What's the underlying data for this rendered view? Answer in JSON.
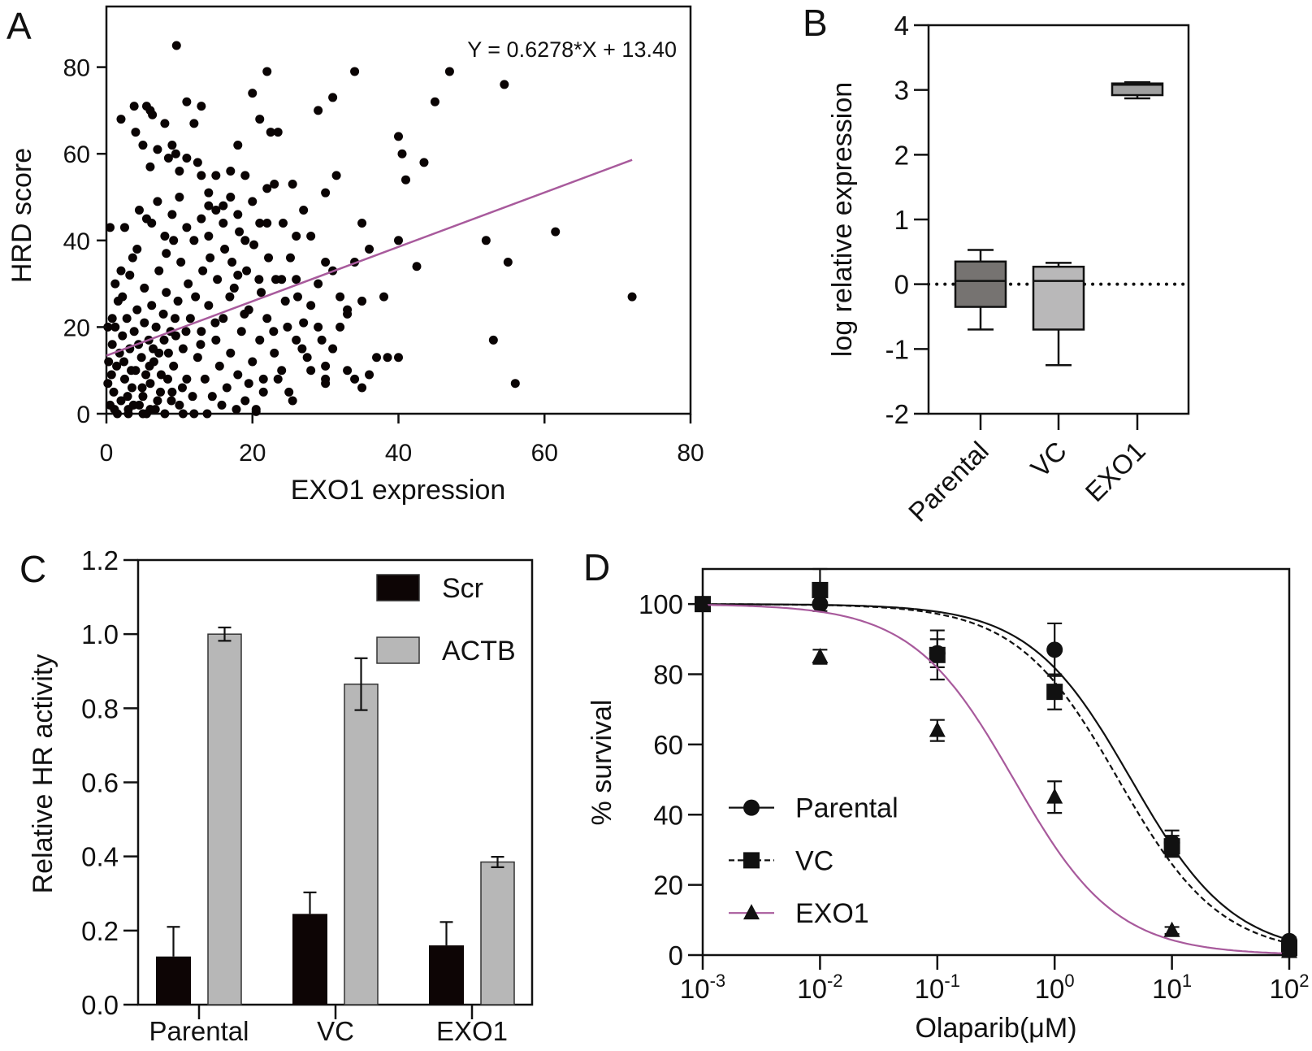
{
  "colors": {
    "ink": "#111111",
    "fit_line": "#a85a9c",
    "box_parental": "#767371",
    "box_vc": "#b9b8b9",
    "box_exo1": "#a0a0a0",
    "bar_scr": "#0d0505",
    "bar_actb": "#b7b7b7"
  },
  "chart_data": [
    {
      "panel": "A",
      "type": "scatter",
      "xlabel": "EXO1 expression",
      "ylabel": "HRD score",
      "xlim": [
        0,
        80
      ],
      "ylim": [
        0,
        94
      ],
      "xticks": [
        "0",
        "20",
        "40",
        "60",
        "80"
      ],
      "yticks": [
        "0",
        "20",
        "40",
        "60",
        "80"
      ],
      "grid": false,
      "annotation": "Y = 0.6278*X + 13.40",
      "regression": {
        "slope": 0.6278,
        "intercept": 13.4,
        "x_range": [
          0,
          72
        ]
      },
      "points": [
        [
          9.6,
          85
        ],
        [
          22,
          79
        ],
        [
          34,
          79
        ],
        [
          47,
          79
        ],
        [
          54.5,
          76
        ],
        [
          72,
          27
        ],
        [
          61.5,
          42
        ],
        [
          52,
          40
        ],
        [
          53,
          17
        ],
        [
          56,
          7
        ],
        [
          55,
          35
        ],
        [
          40,
          64
        ],
        [
          40.5,
          60
        ],
        [
          41,
          54
        ],
        [
          45,
          72
        ],
        [
          43.5,
          58
        ],
        [
          40,
          40
        ],
        [
          42.5,
          34
        ],
        [
          37,
          13
        ],
        [
          38.5,
          13
        ],
        [
          40,
          13
        ],
        [
          31,
          73
        ],
        [
          29,
          70
        ],
        [
          31.5,
          55
        ],
        [
          20,
          74
        ],
        [
          21,
          68
        ],
        [
          22.5,
          65
        ],
        [
          23.5,
          65
        ],
        [
          8,
          67
        ],
        [
          6,
          70
        ],
        [
          5.5,
          71
        ],
        [
          11,
          72
        ],
        [
          13,
          71
        ],
        [
          12,
          67
        ],
        [
          2,
          68
        ],
        [
          3.8,
          71
        ],
        [
          6.3,
          69
        ],
        [
          9,
          62
        ],
        [
          7,
          61
        ],
        [
          5,
          62
        ],
        [
          4,
          65
        ],
        [
          8.5,
          59
        ],
        [
          10,
          56
        ],
        [
          9.5,
          60
        ],
        [
          6,
          57
        ],
        [
          13,
          55
        ],
        [
          15,
          55
        ],
        [
          17,
          56
        ],
        [
          14,
          51
        ],
        [
          16,
          48
        ],
        [
          18,
          62
        ],
        [
          19,
          55
        ],
        [
          23,
          53
        ],
        [
          25.5,
          53
        ],
        [
          30,
          51
        ],
        [
          27,
          47
        ],
        [
          21,
          44
        ],
        [
          22,
          44
        ],
        [
          26,
          41
        ],
        [
          28,
          41
        ],
        [
          34,
          35
        ],
        [
          35,
          44
        ],
        [
          36,
          38
        ],
        [
          38,
          27
        ],
        [
          35,
          26
        ],
        [
          33,
          24
        ],
        [
          29,
          20
        ],
        [
          27,
          21
        ],
        [
          26,
          17
        ],
        [
          31,
          15
        ],
        [
          33,
          10
        ],
        [
          34,
          8
        ],
        [
          35,
          6
        ],
        [
          36,
          9
        ],
        [
          30,
          7
        ],
        [
          30,
          8
        ],
        [
          28,
          10
        ],
        [
          29.5,
          17
        ],
        [
          32,
          20
        ],
        [
          0.5,
          2
        ],
        [
          1,
          5
        ],
        [
          1.5,
          0
        ],
        [
          2,
          3
        ],
        [
          2.5,
          8
        ],
        [
          3,
          1
        ],
        [
          3.5,
          6
        ],
        [
          4,
          10
        ],
        [
          4.5,
          2
        ],
        [
          5,
          4
        ],
        [
          5.5,
          0
        ],
        [
          6,
          7
        ],
        [
          6.5,
          12
        ],
        [
          7,
          3
        ],
        [
          7.5,
          9
        ],
        [
          8,
          0
        ],
        [
          8.5,
          14
        ],
        [
          9,
          5
        ],
        [
          9.5,
          18
        ],
        [
          10,
          2
        ],
        [
          11,
          8
        ],
        [
          12,
          0
        ],
        [
          0.3,
          12
        ],
        [
          0.8,
          16
        ],
        [
          1.2,
          20
        ],
        [
          1.8,
          14
        ],
        [
          2.2,
          18
        ],
        [
          2.8,
          22
        ],
        [
          3.2,
          15
        ],
        [
          3.8,
          19
        ],
        [
          4.2,
          24
        ],
        [
          4.8,
          13
        ],
        [
          5.2,
          21
        ],
        [
          5.8,
          17
        ],
        [
          6.2,
          25
        ],
        [
          6.8,
          20
        ],
        [
          7.2,
          14
        ],
        [
          7.8,
          23
        ],
        [
          8.2,
          28
        ],
        [
          8.8,
          19
        ],
        [
          9.2,
          11
        ],
        [
          9.8,
          26
        ],
        [
          10.5,
          15
        ],
        [
          11.5,
          22
        ],
        [
          12.5,
          13
        ],
        [
          13,
          19
        ],
        [
          13.5,
          8
        ],
        [
          14,
          25
        ],
        [
          14.5,
          4
        ],
        [
          15,
          17
        ],
        [
          15.5,
          11
        ],
        [
          16,
          22
        ],
        [
          16.5,
          6
        ],
        [
          17,
          14
        ],
        [
          17.5,
          29
        ],
        [
          18,
          9
        ],
        [
          18.5,
          19
        ],
        [
          19,
          3
        ],
        [
          19.5,
          24
        ],
        [
          20,
          12
        ],
        [
          20.5,
          1
        ],
        [
          21,
          17
        ],
        [
          21.5,
          8
        ],
        [
          22,
          22
        ],
        [
          23,
          14
        ],
        [
          24,
          10
        ],
        [
          24.5,
          26
        ],
        [
          25,
          5
        ],
        [
          26,
          31
        ],
        [
          0.2,
          7
        ],
        [
          0.7,
          9
        ],
        [
          1.4,
          11
        ],
        [
          2.4,
          12
        ],
        [
          3.4,
          10
        ],
        [
          4.4,
          16
        ],
        [
          5.4,
          9
        ],
        [
          6.4,
          15
        ],
        [
          7.4,
          5
        ],
        [
          8.4,
          8
        ],
        [
          9.4,
          22
        ],
        [
          10.4,
          6
        ],
        [
          11.2,
          30
        ],
        [
          12.2,
          27
        ],
        [
          13.2,
          33
        ],
        [
          14.2,
          36
        ],
        [
          15.2,
          31
        ],
        [
          16.2,
          38
        ],
        [
          17.2,
          35
        ],
        [
          18.2,
          42
        ],
        [
          19.2,
          33
        ],
        [
          20.2,
          39
        ],
        [
          21.2,
          28
        ],
        [
          22.2,
          36
        ],
        [
          23.2,
          31
        ],
        [
          24.2,
          44
        ],
        [
          25.2,
          36
        ],
        [
          26.2,
          27
        ],
        [
          10.2,
          35
        ],
        [
          9.2,
          40
        ],
        [
          8.2,
          37
        ],
        [
          7.2,
          33
        ],
        [
          6.2,
          44
        ],
        [
          5.2,
          29
        ],
        [
          4.2,
          38
        ],
        [
          3.2,
          32
        ],
        [
          2.2,
          27
        ],
        [
          1.2,
          30
        ],
        [
          0.5,
          43
        ],
        [
          2.5,
          43
        ],
        [
          4.5,
          47
        ],
        [
          5.5,
          45
        ],
        [
          7,
          49
        ],
        [
          8,
          41
        ],
        [
          9,
          46
        ],
        [
          10,
          50
        ],
        [
          11,
          43
        ],
        [
          12,
          40
        ],
        [
          13,
          45
        ],
        [
          14,
          41
        ],
        [
          15,
          47
        ],
        [
          16,
          44
        ],
        [
          17,
          50
        ],
        [
          18,
          46
        ],
        [
          19,
          40
        ],
        [
          20,
          49
        ],
        [
          2.9,
          4
        ],
        [
          3.7,
          2
        ],
        [
          1.1,
          1
        ],
        [
          4.9,
          6
        ],
        [
          6.7,
          1
        ],
        [
          8.9,
          3
        ],
        [
          5.9,
          11
        ],
        [
          7.9,
          17
        ],
        [
          10.9,
          19
        ],
        [
          12.9,
          16
        ],
        [
          14.9,
          21
        ],
        [
          16.9,
          27
        ],
        [
          18.9,
          23
        ],
        [
          20.9,
          31
        ],
        [
          22.9,
          19
        ],
        [
          24.8,
          20
        ],
        [
          26.8,
          15
        ],
        [
          27.5,
          13
        ],
        [
          28,
          25
        ],
        [
          29,
          30
        ],
        [
          30,
          11
        ],
        [
          31,
          33
        ],
        [
          32,
          27
        ],
        [
          33,
          23
        ],
        [
          21.5,
          5
        ],
        [
          23.5,
          8
        ],
        [
          25.5,
          3
        ],
        [
          19.5,
          7
        ],
        [
          17.8,
          1
        ],
        [
          15.8,
          2
        ],
        [
          13.8,
          0
        ],
        [
          11.8,
          4
        ],
        [
          22,
          52
        ],
        [
          12.5,
          58
        ],
        [
          11,
          59
        ],
        [
          14,
          48
        ],
        [
          30,
          35
        ],
        [
          24,
          31
        ],
        [
          18,
          32
        ],
        [
          20.5,
          0.5
        ],
        [
          10.5,
          0
        ],
        [
          3,
          0
        ],
        [
          5,
          0
        ],
        [
          6,
          1
        ],
        [
          0.8,
          22
        ],
        [
          1.6,
          26
        ],
        [
          2,
          33
        ],
        [
          3.6,
          36
        ],
        [
          0.2,
          20
        ]
      ]
    },
    {
      "panel": "B",
      "type": "box",
      "ylabel": "log relative expression",
      "ylim": [
        -2,
        4
      ],
      "yticks": [
        "-2",
        "-1",
        "0",
        "1",
        "2",
        "3",
        "4"
      ],
      "reference_line": {
        "y": 0,
        "style": "dotted"
      },
      "categories": [
        "Parental",
        "VC",
        "EXO1"
      ],
      "boxes": [
        {
          "category": "Parental",
          "min": -0.7,
          "q1": -0.35,
          "median": 0.05,
          "q3": 0.35,
          "max": 0.53
        },
        {
          "category": "VC",
          "min": -1.25,
          "q1": -0.7,
          "median": 0.05,
          "q3": 0.27,
          "max": 0.33
        },
        {
          "category": "EXO1",
          "min": 2.87,
          "q1": 2.92,
          "median": 3.08,
          "q3": 3.1,
          "max": 3.12
        }
      ]
    },
    {
      "panel": "C",
      "type": "bar",
      "ylabel": "Relative HR activity",
      "ylim": [
        0,
        1.2
      ],
      "yticks": [
        "0.0",
        "0.2",
        "0.4",
        "0.6",
        "0.8",
        "1.0",
        "1.2"
      ],
      "categories": [
        "Parental",
        "VC",
        "EXO1"
      ],
      "legend_position": "top-right",
      "series": [
        {
          "name": "Scr",
          "values": [
            0.13,
            0.245,
            0.16
          ],
          "errors": [
            0.08,
            0.058,
            0.063
          ]
        },
        {
          "name": "ACTB",
          "values": [
            1.0,
            0.865,
            0.385
          ],
          "errors": [
            0.018,
            0.07,
            0.014
          ]
        }
      ]
    },
    {
      "panel": "D",
      "type": "line",
      "xlabel": "Olaparib(μM)",
      "ylabel": "% survival",
      "xscale": "log",
      "xlim": [
        0.001,
        100
      ],
      "ylim": [
        0,
        110
      ],
      "xticks": [
        {
          "base": "10",
          "exp": "-3"
        },
        {
          "base": "10",
          "exp": "-2"
        },
        {
          "base": "10",
          "exp": "-1"
        },
        {
          "base": "10",
          "exp": "0"
        },
        {
          "base": "10",
          "exp": "1"
        },
        {
          "base": "10",
          "exp": "2"
        }
      ],
      "yticks": [
        "0",
        "20",
        "40",
        "60",
        "80",
        "100"
      ],
      "legend_position": "bottom-left",
      "x": [
        0.001,
        0.01,
        0.1,
        1,
        10,
        100
      ],
      "series": [
        {
          "name": "Parental",
          "marker": "circle",
          "line": "solid",
          "values": [
            100,
            100,
            86,
            87,
            32,
            4
          ],
          "errors": [
            0,
            0,
            4,
            7.5,
            3.5,
            1
          ],
          "fit": {
            "top": 100,
            "bottom": 0,
            "ic50": 4.5,
            "hill": 1
          }
        },
        {
          "name": "VC",
          "marker": "square",
          "line": "dashed",
          "values": [
            100,
            104,
            85.5,
            75,
            31,
            2
          ],
          "errors": [
            0,
            6,
            7,
            5,
            3,
            1
          ],
          "fit": {
            "top": 100,
            "bottom": 0,
            "ic50": 3.5,
            "hill": 1
          }
        },
        {
          "name": "EXO1",
          "marker": "triangle",
          "line": "solid-purple",
          "values": [
            100,
            85,
            64,
            45,
            7,
            1
          ],
          "errors": [
            0,
            2,
            3,
            4.5,
            1,
            0.5
          ],
          "fit": {
            "top": 100,
            "bottom": 0,
            "ic50": 0.45,
            "hill": 1
          }
        }
      ]
    }
  ]
}
